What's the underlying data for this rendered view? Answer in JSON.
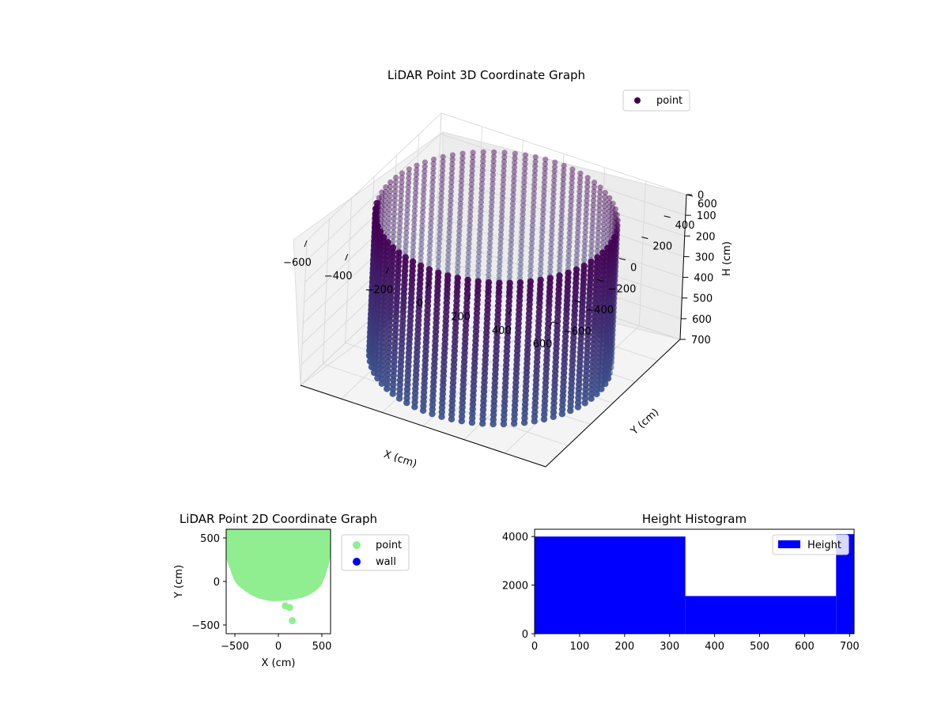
{
  "chart_data": [
    {
      "type": "scatter3d",
      "title": "LiDAR Point 3D Coordinate Graph",
      "xlabel": "X (cm)",
      "ylabel": "Y (cm)",
      "zlabel": "H (cm)",
      "xlim": [
        -600,
        600
      ],
      "ylim": [
        -600,
        600
      ],
      "zlim": [
        0,
        700
      ],
      "z_inverted": true,
      "x_ticks": [
        -600,
        -400,
        -200,
        0,
        200,
        400,
        600
      ],
      "y_ticks": [
        -600,
        -400,
        -200,
        0,
        200,
        400,
        600
      ],
      "z_ticks": [
        0,
        100,
        200,
        300,
        400,
        500,
        600,
        700
      ],
      "legend": [
        "point"
      ],
      "legend_position": "top-right",
      "colormap": "viridis (dark purple to teal)",
      "shape": "cylindrical wall of points, radius about 550 cm, heights 0 to 700 cm",
      "marker_color": "#440154",
      "grid": true
    },
    {
      "type": "scatter",
      "title": "LiDAR Point 2D Coordinate Graph",
      "xlabel": "X (cm)",
      "ylabel": "Y (cm)",
      "xlim": [
        -600,
        600
      ],
      "ylim": [
        -600,
        600
      ],
      "x_ticks": [
        -500,
        0,
        500
      ],
      "y_ticks": [
        -500,
        0,
        500
      ],
      "series": [
        {
          "name": "point",
          "color": "#90ee90",
          "shape": "dense filled disc covering y from about -200 to 600",
          "outliers": [
            [
              80,
              -280
            ],
            [
              130,
              -300
            ],
            [
              160,
              -450
            ]
          ]
        },
        {
          "name": "wall",
          "color": "#0000ff",
          "points": []
        }
      ],
      "legend_position": "outside right"
    },
    {
      "type": "histogram",
      "title": "Height Histogram",
      "xlim": [
        0,
        710
      ],
      "ylim": [
        0,
        4300
      ],
      "x_ticks": [
        0,
        100,
        200,
        300,
        400,
        500,
        600,
        700
      ],
      "y_ticks": [
        0,
        2000,
        4000
      ],
      "bins": [
        {
          "x0": 0,
          "x1": 335,
          "count": 4000
        },
        {
          "x0": 335,
          "x1": 670,
          "count": 1550
        },
        {
          "x0": 670,
          "x1": 710,
          "count": 4100
        }
      ],
      "color": "#0000ff",
      "legend": [
        "Height"
      ],
      "legend_position": "top-right"
    }
  ]
}
